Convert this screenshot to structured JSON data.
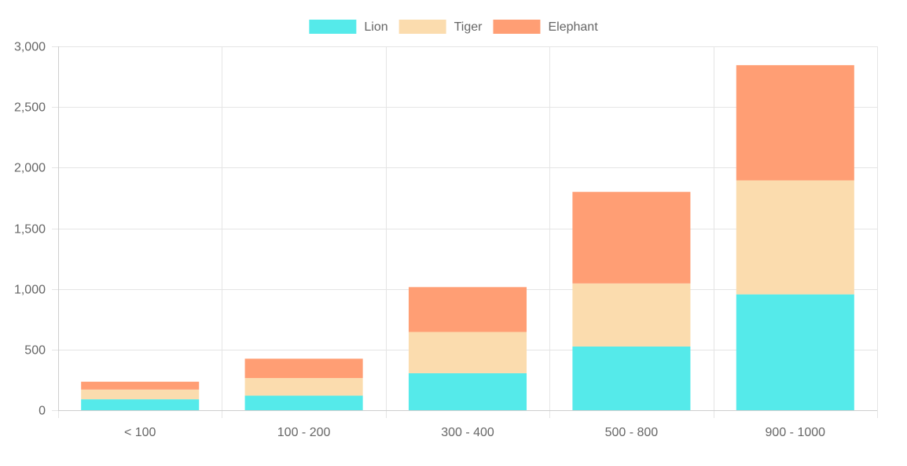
{
  "chart_data": {
    "type": "bar",
    "stacked": true,
    "categories": [
      "<  100",
      "100 - 200",
      "300 - 400",
      "500 - 800",
      "900 - 1000"
    ],
    "series": [
      {
        "name": "Lion",
        "color": "#55EAEA",
        "values": [
          90,
          120,
          305,
          525,
          955
        ]
      },
      {
        "name": "Tiger",
        "color": "#FBDCAE",
        "values": [
          80,
          145,
          340,
          520,
          940
        ]
      },
      {
        "name": "Elephant",
        "color": "#FF9E74",
        "values": [
          65,
          160,
          370,
          755,
          950
        ]
      }
    ],
    "ylim": [
      0,
      3000
    ],
    "yticks": [
      0,
      500,
      1000,
      1500,
      2000,
      2500,
      3000
    ],
    "ytick_labels": [
      "0",
      "500",
      "1,000",
      "1,500",
      "2,000",
      "2,500",
      "3,000"
    ],
    "grid": true,
    "legend_position": "top"
  }
}
